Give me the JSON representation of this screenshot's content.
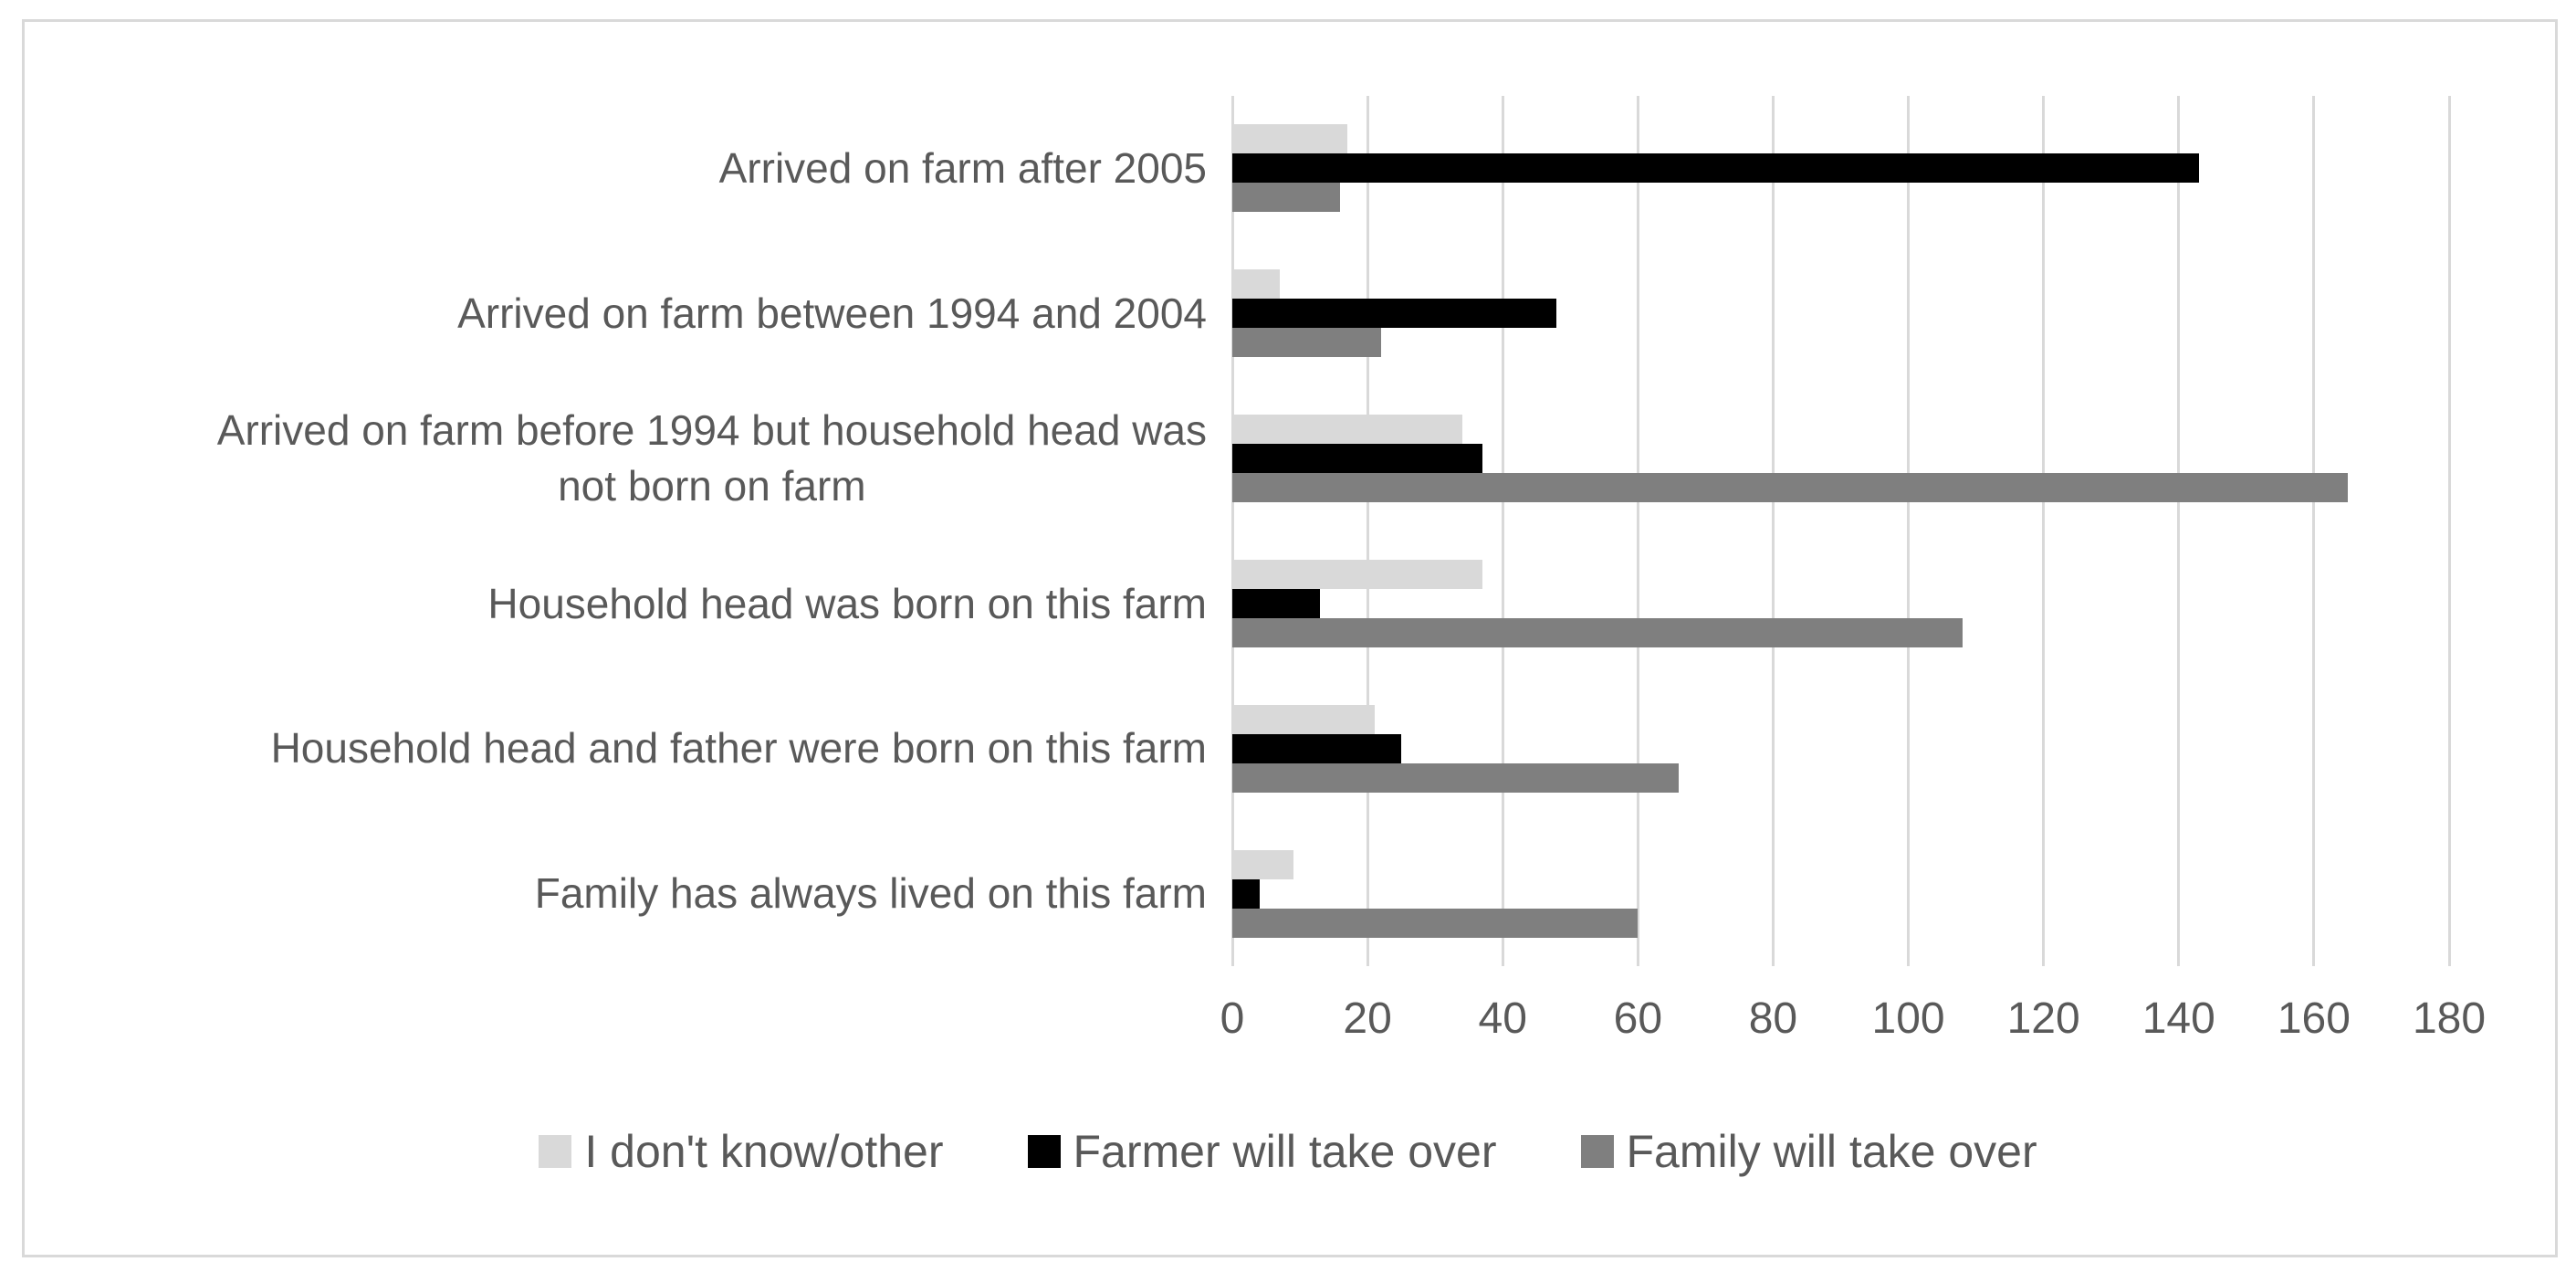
{
  "chart_data": {
    "type": "bar",
    "orientation": "horizontal",
    "title": "",
    "xlabel": "",
    "ylabel": "",
    "categories": [
      "Arrived on farm after 2005",
      "Arrived on farm between 1994 and 2004",
      "Arrived on farm before 1994 but household head was\nnot born on farm",
      "Household head was born on this farm",
      "Household head and father were born on this farm",
      "Family has always lived on this farm"
    ],
    "series": [
      {
        "name": "I don't know/other",
        "color": "#d9d9d9",
        "values": [
          17,
          7,
          34,
          37,
          21,
          9
        ]
      },
      {
        "name": "Farmer will take over",
        "color": "#000000",
        "values": [
          143,
          48,
          37,
          13,
          25,
          4
        ]
      },
      {
        "name": "Family will take over",
        "color": "#7f7f7f",
        "values": [
          16,
          22,
          165,
          108,
          66,
          60
        ]
      }
    ],
    "xlim": [
      0,
      180
    ],
    "x_ticks": [
      0,
      20,
      40,
      60,
      80,
      100,
      120,
      140,
      160,
      180
    ],
    "grid": "vertical-gridlines",
    "legend_position": "bottom"
  },
  "colors": {
    "text": "#595959",
    "gridline": "#d9d9d9",
    "frame_border": "#d9d9d9",
    "background": "#ffffff"
  }
}
